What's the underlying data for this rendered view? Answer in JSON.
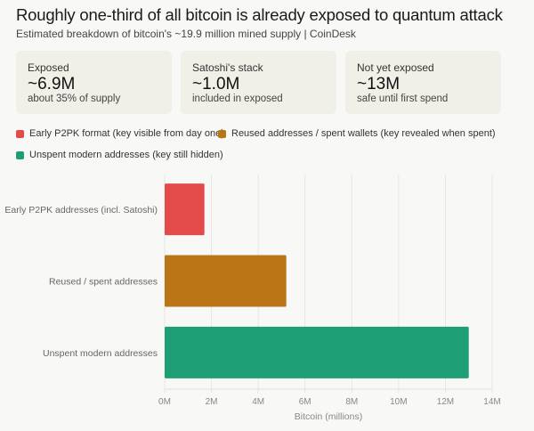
{
  "header": {
    "title": "Roughly one-third of all bitcoin is already exposed to quantum attack",
    "subtitle": "Estimated breakdown of bitcoin's ~19.9 million mined supply | CoinDesk"
  },
  "cards": [
    {
      "label": "Exposed",
      "value": "~6.9M",
      "sub": "about 35% of supply"
    },
    {
      "label": "Satoshi's stack",
      "value": "~1.0M",
      "sub": "included in exposed"
    },
    {
      "label": "Not yet exposed",
      "value": "~13M",
      "sub": "safe until first spend"
    }
  ],
  "legend": [
    {
      "label": "Early P2PK format (key visible from day one)",
      "color": "#e24b4a"
    },
    {
      "label": "Reused addresses / spent wallets (key revealed when spent)",
      "color": "#ba7517"
    },
    {
      "label": "Unspent modern addresses (key still hidden)",
      "color": "#1d9e75"
    }
  ],
  "chart_data": {
    "type": "bar",
    "orientation": "horizontal",
    "categories": [
      "Early P2PK addresses (incl. Satoshi)",
      "Reused / spent addresses",
      "Unspent modern addresses"
    ],
    "values": [
      1.7,
      5.2,
      13
    ],
    "colors": [
      "#e24b4a",
      "#ba7517",
      "#1d9e75"
    ],
    "xlabel": "Bitcoin (millions)",
    "ylabel": "",
    "xlim": [
      0,
      14
    ],
    "xticks": [
      "0M",
      "2M",
      "4M",
      "6M",
      "8M",
      "10M",
      "12M",
      "14M"
    ],
    "grid": true,
    "legend_position": "top"
  }
}
